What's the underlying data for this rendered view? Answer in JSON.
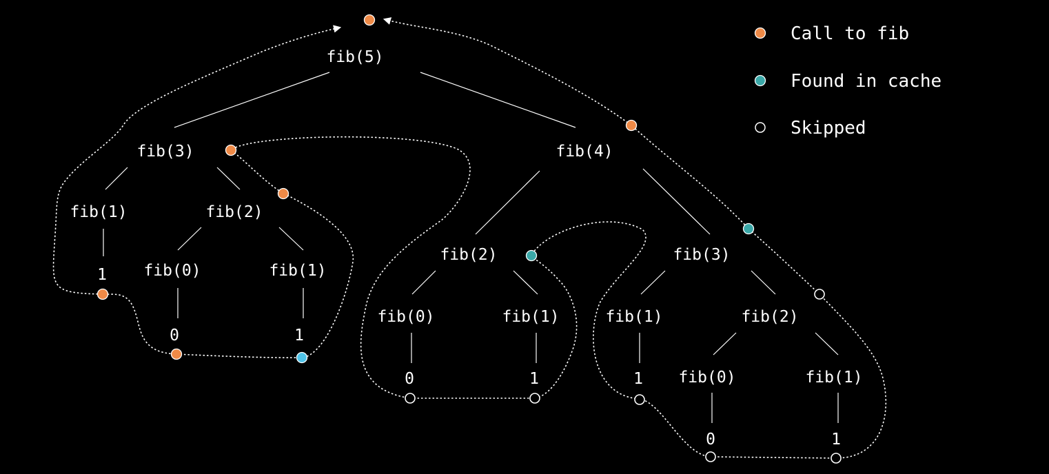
{
  "legend": {
    "items": [
      {
        "label": "Call to fib",
        "marker": "filled",
        "color": "#ef8a47"
      },
      {
        "label": "Found in cache",
        "marker": "filled",
        "color": "#3aa8a8"
      },
      {
        "label": "Skipped",
        "marker": "hollow",
        "color": "#ffffff"
      }
    ]
  },
  "tree": {
    "nodes": [
      {
        "id": "n5",
        "label": "fib(5)"
      },
      {
        "id": "n3a",
        "label": "fib(3)"
      },
      {
        "id": "n4",
        "label": "fib(4)"
      },
      {
        "id": "n1a",
        "label": "fib(1)"
      },
      {
        "id": "n2a",
        "label": "fib(2)"
      },
      {
        "id": "v1a",
        "label": "1"
      },
      {
        "id": "n0a",
        "label": "fib(0)"
      },
      {
        "id": "n1b",
        "label": "fib(1)"
      },
      {
        "id": "v0a",
        "label": "0"
      },
      {
        "id": "v1b",
        "label": "1"
      },
      {
        "id": "n2b",
        "label": "fib(2)"
      },
      {
        "id": "n3b",
        "label": "fib(3)"
      },
      {
        "id": "n0b",
        "label": "fib(0)"
      },
      {
        "id": "n1c",
        "label": "fib(1)"
      },
      {
        "id": "v0b",
        "label": "0"
      },
      {
        "id": "v1c",
        "label": "1"
      },
      {
        "id": "n1d",
        "label": "fib(1)"
      },
      {
        "id": "n2c",
        "label": "fib(2)"
      },
      {
        "id": "v1d",
        "label": "1"
      },
      {
        "id": "n0c",
        "label": "fib(0)"
      },
      {
        "id": "n1e",
        "label": "fib(1)"
      },
      {
        "id": "v0c",
        "label": "0"
      },
      {
        "id": "v1e",
        "label": "1"
      }
    ],
    "edges": [
      [
        "n5",
        "n3a"
      ],
      [
        "n5",
        "n4"
      ],
      [
        "n3a",
        "n1a"
      ],
      [
        "n3a",
        "n2a"
      ],
      [
        "n1a",
        "v1a"
      ],
      [
        "n2a",
        "n0a"
      ],
      [
        "n2a",
        "n1b"
      ],
      [
        "n0a",
        "v0a"
      ],
      [
        "n1b",
        "v1b"
      ],
      [
        "n4",
        "n2b"
      ],
      [
        "n4",
        "n3b"
      ],
      [
        "n2b",
        "n0b"
      ],
      [
        "n2b",
        "n1c"
      ],
      [
        "n0b",
        "v0b"
      ],
      [
        "n1c",
        "v1c"
      ],
      [
        "n3b",
        "n1d"
      ],
      [
        "n3b",
        "n2c"
      ],
      [
        "n1d",
        "v1d"
      ],
      [
        "n2c",
        "n0c"
      ],
      [
        "n2c",
        "n1e"
      ],
      [
        "n0c",
        "v0c"
      ],
      [
        "n1e",
        "v1e"
      ]
    ]
  },
  "markers": [
    {
      "id": "m-root",
      "kind": "call"
    },
    {
      "id": "m-fib3a",
      "kind": "call"
    },
    {
      "id": "m-fib2a",
      "kind": "call"
    },
    {
      "id": "m-v1a",
      "kind": "call"
    },
    {
      "id": "m-v0a",
      "kind": "call"
    },
    {
      "id": "m-v1b",
      "kind": "cache"
    },
    {
      "id": "m-fib4",
      "kind": "call"
    },
    {
      "id": "m-fib2b",
      "kind": "cache"
    },
    {
      "id": "m-fib3b",
      "kind": "cache"
    },
    {
      "id": "m-fib2c",
      "kind": "skip"
    },
    {
      "id": "m-v0b",
      "kind": "skip"
    },
    {
      "id": "m-v1c",
      "kind": "skip"
    },
    {
      "id": "m-v1d",
      "kind": "skip"
    },
    {
      "id": "m-v0c",
      "kind": "skip"
    },
    {
      "id": "m-v1e",
      "kind": "skip"
    }
  ]
}
